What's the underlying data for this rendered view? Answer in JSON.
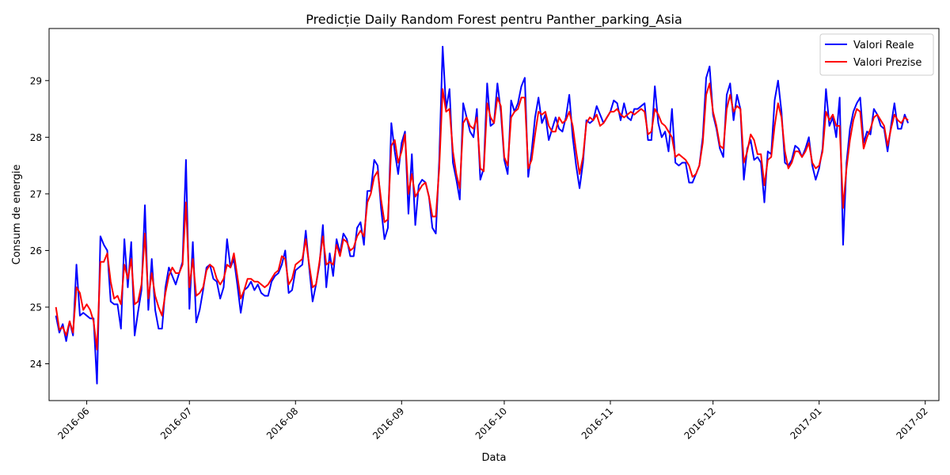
{
  "chart_data": {
    "type": "line",
    "title": "Predicție Daily Random Forest pentru Panther_parking_Asia",
    "xlabel": "Data",
    "ylabel": "Consum de energie",
    "x_axis": "date",
    "xlim": [
      "2016-05-21",
      "2017-02-05"
    ],
    "ylim": [
      23.35,
      29.92
    ],
    "x_ticks": [
      "2016-06-01",
      "2016-07-01",
      "2016-08-01",
      "2016-09-01",
      "2016-10-01",
      "2016-11-01",
      "2016-12-01",
      "2017-01-01",
      "2017-02-01"
    ],
    "x_tick_labels": [
      "2016-06",
      "2016-07",
      "2016-08",
      "2016-09",
      "2016-10",
      "2016-11",
      "2016-12",
      "2017-01",
      "2017-02"
    ],
    "y_ticks": [
      24,
      25,
      26,
      27,
      28,
      29
    ],
    "grid": false,
    "legend_position": "top-right",
    "start_date": "2016-05-23",
    "series": [
      {
        "name": "Valori Reale",
        "color": "#0000ff",
        "values": [
          24.85,
          24.55,
          24.7,
          24.4,
          24.75,
          24.5,
          25.75,
          24.85,
          24.9,
          24.85,
          24.8,
          24.8,
          23.65,
          26.25,
          26.1,
          26.0,
          25.1,
          25.05,
          25.05,
          24.62,
          26.2,
          25.35,
          26.15,
          24.5,
          24.92,
          25.3,
          26.8,
          24.95,
          25.85,
          24.95,
          24.62,
          24.62,
          25.35,
          25.7,
          25.55,
          25.4,
          25.6,
          25.8,
          27.6,
          24.97,
          26.15,
          24.73,
          24.95,
          25.3,
          25.7,
          25.75,
          25.5,
          25.45,
          25.15,
          25.35,
          26.2,
          25.7,
          25.85,
          25.4,
          24.9,
          25.3,
          25.35,
          25.45,
          25.3,
          25.4,
          25.25,
          25.2,
          25.2,
          25.45,
          25.55,
          25.6,
          25.75,
          26.0,
          25.25,
          25.3,
          25.65,
          25.7,
          25.75,
          26.35,
          25.7,
          25.1,
          25.4,
          25.75,
          26.45,
          25.35,
          25.95,
          25.55,
          26.2,
          25.95,
          26.3,
          26.2,
          25.9,
          25.9,
          26.4,
          26.5,
          26.1,
          27.05,
          27.05,
          27.6,
          27.5,
          26.75,
          26.2,
          26.4,
          28.25,
          27.75,
          27.35,
          27.9,
          28.1,
          26.65,
          27.7,
          26.45,
          27.15,
          27.25,
          27.2,
          26.95,
          26.4,
          26.3,
          27.6,
          29.6,
          28.5,
          28.85,
          27.55,
          27.25,
          26.9,
          28.6,
          28.35,
          28.1,
          28.0,
          28.5,
          27.25,
          27.45,
          28.95,
          28.2,
          28.25,
          28.95,
          28.45,
          27.6,
          27.35,
          28.65,
          28.45,
          28.6,
          28.9,
          29.05,
          27.3,
          27.75,
          28.35,
          28.7,
          28.25,
          28.4,
          27.95,
          28.15,
          28.35,
          28.15,
          28.1,
          28.35,
          28.75,
          28.0,
          27.5,
          27.1,
          27.55,
          28.3,
          28.25,
          28.3,
          28.55,
          28.4,
          28.25,
          28.35,
          28.45,
          28.65,
          28.6,
          28.3,
          28.6,
          28.35,
          28.3,
          28.5,
          28.5,
          28.55,
          28.6,
          27.95,
          27.95,
          28.9,
          28.25,
          28.0,
          28.1,
          27.75,
          28.5,
          27.55,
          27.5,
          27.55,
          27.55,
          27.2,
          27.2,
          27.35,
          27.5,
          28.0,
          29.05,
          29.25,
          28.4,
          28.15,
          27.8,
          27.65,
          28.75,
          28.95,
          28.3,
          28.75,
          28.5,
          27.25,
          27.8,
          27.95,
          27.6,
          27.65,
          27.55,
          26.85,
          27.75,
          27.7,
          28.65,
          29.0,
          28.45,
          27.55,
          27.5,
          27.6,
          27.85,
          27.8,
          27.65,
          27.8,
          28.0,
          27.5,
          27.25,
          27.45,
          27.8,
          28.85,
          28.2,
          28.35,
          28.0,
          28.7,
          26.1,
          27.55,
          28.15,
          28.45,
          28.6,
          28.7,
          27.9,
          28.1,
          28.05,
          28.5,
          28.4,
          28.2,
          28.15,
          27.75,
          28.2,
          28.6,
          28.15,
          28.15,
          28.4,
          28.25
        ]
      },
      {
        "name": "Valori Prezise",
        "color": "#ff0000",
        "values": [
          25.0,
          24.6,
          24.65,
          24.5,
          24.75,
          24.55,
          25.35,
          25.25,
          24.95,
          25.05,
          24.95,
          24.75,
          24.25,
          25.8,
          25.8,
          25.95,
          25.45,
          25.15,
          25.2,
          25.05,
          25.75,
          25.5,
          25.85,
          25.05,
          25.1,
          25.4,
          26.3,
          25.15,
          25.6,
          25.2,
          25.0,
          24.85,
          25.25,
          25.55,
          25.7,
          25.6,
          25.6,
          25.75,
          26.85,
          25.35,
          25.85,
          25.2,
          25.25,
          25.35,
          25.65,
          25.75,
          25.7,
          25.5,
          25.4,
          25.5,
          25.75,
          25.7,
          25.95,
          25.55,
          25.15,
          25.3,
          25.5,
          25.5,
          25.45,
          25.45,
          25.4,
          25.35,
          25.4,
          25.5,
          25.6,
          25.65,
          25.9,
          25.85,
          25.4,
          25.5,
          25.75,
          25.8,
          25.85,
          26.2,
          25.75,
          25.35,
          25.4,
          25.8,
          26.25,
          25.75,
          25.8,
          25.75,
          26.1,
          25.9,
          26.2,
          26.15,
          26.0,
          26.05,
          26.25,
          26.35,
          26.25,
          26.85,
          27.0,
          27.3,
          27.4,
          26.9,
          26.5,
          26.55,
          27.85,
          27.95,
          27.55,
          27.75,
          28.05,
          27.0,
          27.35,
          26.95,
          27.05,
          27.15,
          27.2,
          26.95,
          26.6,
          26.6,
          27.45,
          28.85,
          28.45,
          28.5,
          27.75,
          27.35,
          27.1,
          28.25,
          28.35,
          28.2,
          28.15,
          28.35,
          27.45,
          27.4,
          28.6,
          28.35,
          28.25,
          28.7,
          28.55,
          27.65,
          27.5,
          28.35,
          28.45,
          28.5,
          28.7,
          28.7,
          27.45,
          27.6,
          28.05,
          28.45,
          28.4,
          28.45,
          28.2,
          28.1,
          28.1,
          28.35,
          28.25,
          28.3,
          28.45,
          28.2,
          27.75,
          27.35,
          27.65,
          28.25,
          28.35,
          28.3,
          28.4,
          28.2,
          28.25,
          28.35,
          28.45,
          28.45,
          28.5,
          28.4,
          28.35,
          28.4,
          28.45,
          28.4,
          28.45,
          28.5,
          28.45,
          28.05,
          28.1,
          28.5,
          28.4,
          28.25,
          28.2,
          28.1,
          28.0,
          27.65,
          27.7,
          27.65,
          27.6,
          27.5,
          27.3,
          27.35,
          27.5,
          27.9,
          28.75,
          28.95,
          28.45,
          28.2,
          27.85,
          27.8,
          28.5,
          28.75,
          28.45,
          28.55,
          28.5,
          27.55,
          27.75,
          28.05,
          27.95,
          27.7,
          27.7,
          27.15,
          27.6,
          27.65,
          28.2,
          28.6,
          28.35,
          27.75,
          27.45,
          27.55,
          27.75,
          27.75,
          27.65,
          27.75,
          27.9,
          27.55,
          27.45,
          27.5,
          27.75,
          28.45,
          28.3,
          28.4,
          28.2,
          28.2,
          26.75,
          27.45,
          27.95,
          28.3,
          28.5,
          28.45,
          27.8,
          28.0,
          28.15,
          28.35,
          28.4,
          28.3,
          28.2,
          27.85,
          28.15,
          28.4,
          28.3,
          28.25,
          28.35,
          28.3
        ]
      }
    ]
  }
}
